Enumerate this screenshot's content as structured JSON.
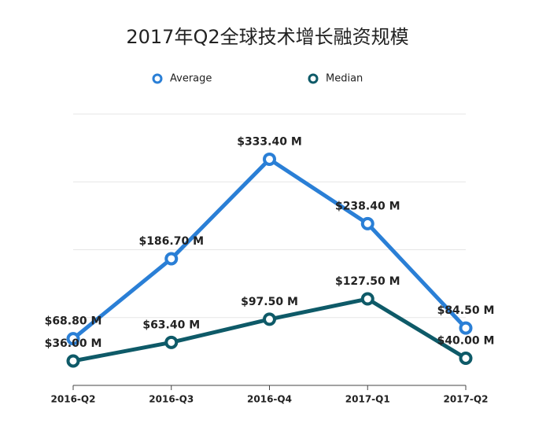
{
  "chart_data": {
    "type": "line",
    "title": "2017年Q2全球技术增长融资规模",
    "categories": [
      "2016-Q2",
      "2016-Q3",
      "2016-Q4",
      "2017-Q1",
      "2017-Q2"
    ],
    "series": [
      {
        "name": "Average",
        "color": "#2a7fd6",
        "values": [
          68.8,
          186.7,
          333.4,
          238.4,
          84.5
        ],
        "value_labels": [
          "$68.80 M",
          "$186.70 M",
          "$333.40 M",
          "$238.40 M",
          "$84.50 M"
        ]
      },
      {
        "name": "Median",
        "color": "#0e5a68",
        "values": [
          36.0,
          63.4,
          97.5,
          127.5,
          40.0
        ],
        "value_labels": [
          "$36.00 M",
          "$63.40 M",
          "$97.50 M",
          "$127.50 M",
          "$40.00 M"
        ]
      }
    ],
    "ylim": [
      0,
      400
    ],
    "yticks": [
      0,
      100,
      200,
      300,
      400
    ],
    "grid": true,
    "legend": "top"
  }
}
